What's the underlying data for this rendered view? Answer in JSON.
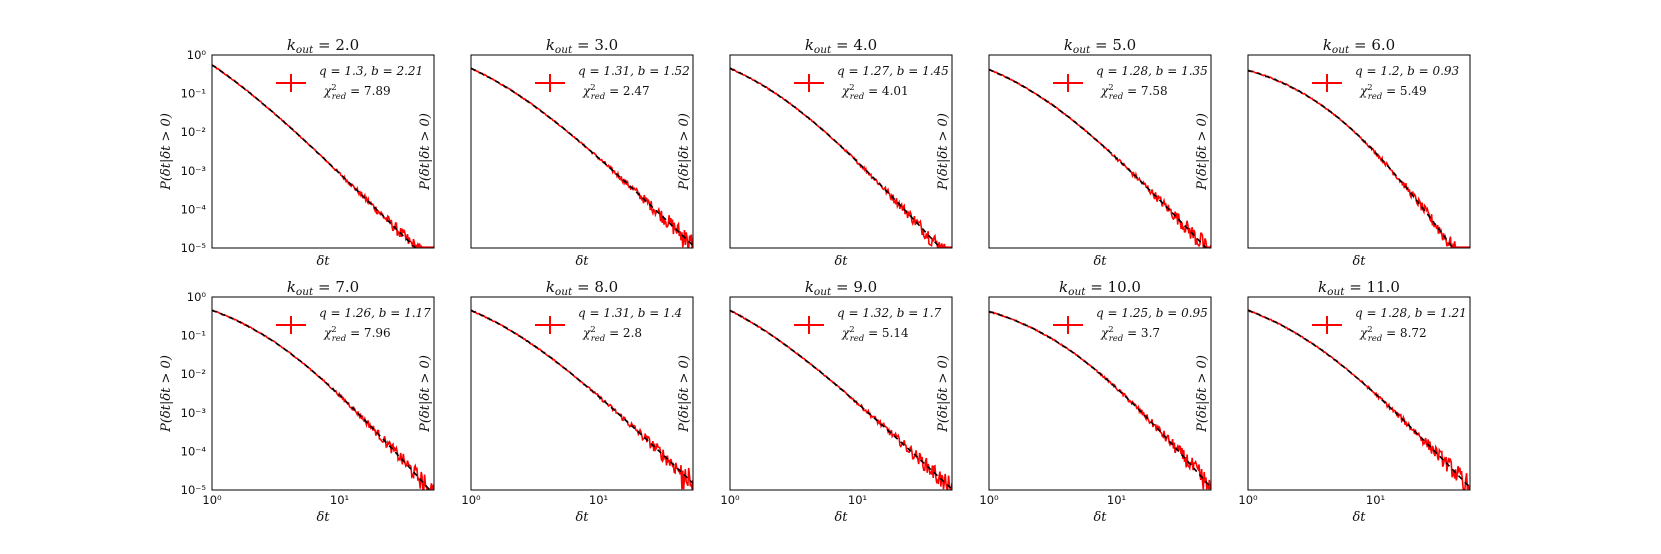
{
  "chart_data": {
    "type": "line",
    "layout": "2x5 grid of small multiples",
    "xscale": "log",
    "yscale": "log",
    "xlim": [
      1,
      55
    ],
    "ylim": [
      1e-05,
      1
    ],
    "x_tick_labels": [
      "10⁰",
      "10¹"
    ],
    "y_tick_labels": [
      "10⁰",
      "10⁻¹",
      "10⁻²",
      "10⁻³",
      "10⁻⁴",
      "10⁻⁵"
    ],
    "xlabel": "δt",
    "ylabel": "P(δt|δt > 0)",
    "grid": false,
    "legend_position": "upper-right",
    "colors": {
      "data": "#ff0000",
      "fit": "#000000"
    },
    "panels": [
      {
        "k_out": "2.0",
        "title": "k_out = 2.0",
        "legend_line1": "q = 1.3, b = 2.21",
        "legend_line2": "χ²_red = 7.89",
        "y_at_1": 0.55,
        "q": 1.3,
        "b": 2.21
      },
      {
        "k_out": "3.0",
        "title": "k_out = 3.0",
        "legend_line1": "q = 1.31, b = 1.52",
        "legend_line2": "χ²_red = 2.47",
        "y_at_1": 0.45,
        "q": 1.31,
        "b": 1.52
      },
      {
        "k_out": "4.0",
        "title": "k_out = 4.0",
        "legend_line1": "q = 1.27, b = 1.45",
        "legend_line2": "χ²_red = 4.01",
        "y_at_1": 0.45,
        "q": 1.27,
        "b": 1.45
      },
      {
        "k_out": "5.0",
        "title": "k_out = 5.0",
        "legend_line1": "q = 1.28, b = 1.35",
        "legend_line2": "χ²_red = 7.58",
        "y_at_1": 0.42,
        "q": 1.28,
        "b": 1.35
      },
      {
        "k_out": "6.0",
        "title": "k_out = 6.0",
        "legend_line1": "q = 1.2, b = 0.93",
        "legend_line2": "χ²_red = 5.49",
        "y_at_1": 0.4,
        "q": 1.2,
        "b": 0.93
      },
      {
        "k_out": "7.0",
        "title": "k_out = 7.0",
        "legend_line1": "q = 1.26, b = 1.17",
        "legend_line2": "χ²_red = 7.96",
        "y_at_1": 0.45,
        "q": 1.26,
        "b": 1.17
      },
      {
        "k_out": "8.0",
        "title": "k_out = 8.0",
        "legend_line1": "q = 1.31, b = 1.4",
        "legend_line2": "χ²_red = 2.8",
        "y_at_1": 0.45,
        "q": 1.31,
        "b": 1.4
      },
      {
        "k_out": "9.0",
        "title": "k_out = 9.0",
        "legend_line1": "q = 1.32, b = 1.7",
        "legend_line2": "χ²_red = 5.14",
        "y_at_1": 0.45,
        "q": 1.32,
        "b": 1.7
      },
      {
        "k_out": "10.0",
        "title": "k_out = 10.0",
        "legend_line1": "q = 1.25, b = 0.95",
        "legend_line2": "χ²_red = 3.7",
        "y_at_1": 0.42,
        "q": 1.25,
        "b": 0.95
      },
      {
        "k_out": "11.0",
        "title": "k_out = 11.0",
        "legend_line1": "q = 1.28, b = 1.21",
        "legend_line2": "χ²_red = 8.72",
        "y_at_1": 0.45,
        "q": 1.28,
        "b": 1.21
      }
    ]
  }
}
